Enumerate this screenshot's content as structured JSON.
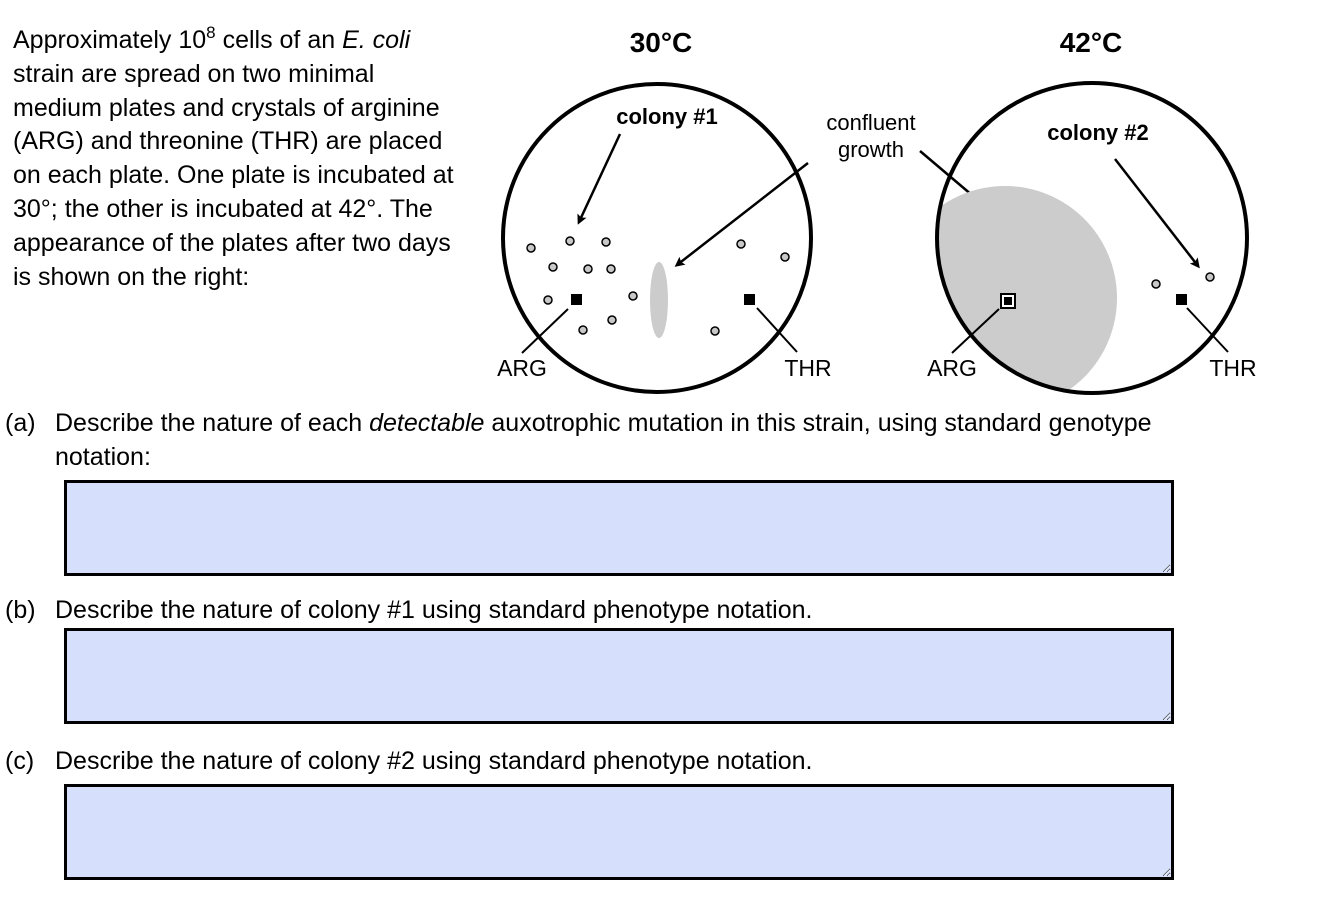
{
  "intro": {
    "part1": "Approximately 10",
    "sup": "8",
    "part2": " cells of an ",
    "species": "E. coli",
    "part3": " strain are spread on two minimal medium plates and crystals of arginine (ARG) and threonine (THR) are placed on each plate.  One plate is incubated at 30°; the other is incubated at 42°.  The appearance of the plates after two days is shown on the right:"
  },
  "figure": {
    "plate_left_temp": "30°C",
    "plate_right_temp": "42°C",
    "colony1_label": "colony #1",
    "colony2_label": "colony #2",
    "confluent_line1": "confluent",
    "confluent_line2": "growth",
    "left_arg": "ARG",
    "left_thr": "THR",
    "right_arg": "ARG",
    "right_thr": "THR",
    "colors": {
      "growth": "#cccccc",
      "colony_fill": "#c8c8c8",
      "stroke": "#000000"
    }
  },
  "questions": [
    {
      "letter": "(a)",
      "text_before": "Describe the nature of each ",
      "text_emph": "detectable",
      "text_after": " auxotrophic mutation in this strain, using standard genotype notation:",
      "answer": ""
    },
    {
      "letter": "(b)",
      "text": "Describe the nature of colony #1 using standard phenotype notation.",
      "answer": ""
    },
    {
      "letter": "(c)",
      "text": "Describe the nature of colony #2 using standard phenotype notation.",
      "answer": ""
    }
  ],
  "answer_box_color": "#d6e0fd"
}
